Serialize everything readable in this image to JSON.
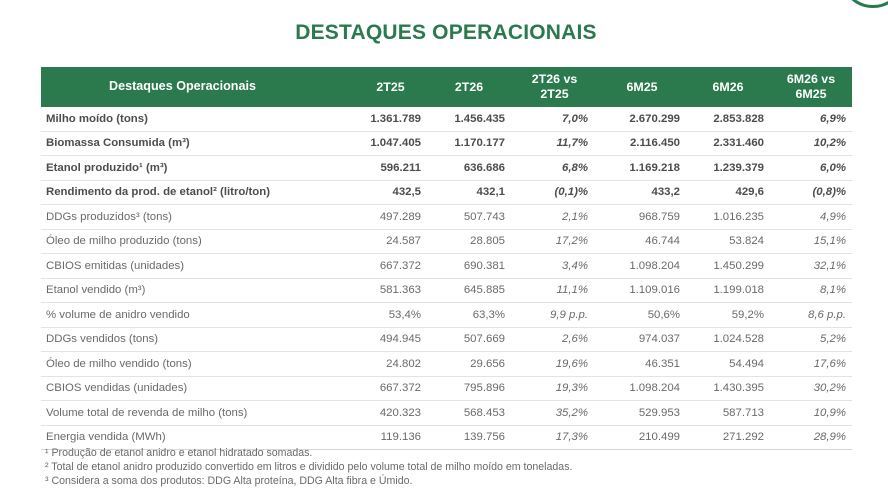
{
  "title": "DESTAQUES OPERACIONAIS",
  "colors": {
    "accent": "#2a7a4e",
    "text": "#6a6a6a",
    "header_text": "#ffffff"
  },
  "table": {
    "headers": [
      "Destaques Operacionais",
      "2T25",
      "2T26",
      "2T26 vs 2T25",
      "6M25",
      "6M26",
      "6M26 vs 6M25"
    ],
    "rows": [
      {
        "bold": true,
        "cells": [
          "Milho moído (tons)",
          "1.361.789",
          "1.456.435",
          "7,0%",
          "2.670.299",
          "2.853.828",
          "6,9%"
        ]
      },
      {
        "bold": true,
        "cells": [
          "Biomassa Consumida (m³)",
          "1.047.405",
          "1.170.177",
          "11,7%",
          "2.116.450",
          "2.331.460",
          "10,2%"
        ]
      },
      {
        "bold": true,
        "cells": [
          "Etanol produzido¹ (m³)",
          "596.211",
          "636.686",
          "6,8%",
          "1.169.218",
          "1.239.379",
          "6,0%"
        ]
      },
      {
        "bold": true,
        "cells": [
          "Rendimento da prod. de etanol² (litro/ton)",
          "432,5",
          "432,1",
          "(0,1)%",
          "433,2",
          "429,6",
          "(0,8)%"
        ]
      },
      {
        "bold": false,
        "cells": [
          "DDGs produzidos³ (tons)",
          "497.289",
          "507.743",
          "2,1%",
          "968.759",
          "1.016.235",
          "4,9%"
        ]
      },
      {
        "bold": false,
        "cells": [
          "Óleo de milho produzido (tons)",
          "24.587",
          "28.805",
          "17,2%",
          "46.744",
          "53.824",
          "15,1%"
        ]
      },
      {
        "bold": false,
        "cells": [
          "CBIOS emitidas (unidades)",
          "667.372",
          "690.381",
          "3,4%",
          "1.098.204",
          "1.450.299",
          "32,1%"
        ]
      },
      {
        "bold": false,
        "cells": [
          "Etanol vendido (m³)",
          "581.363",
          "645.885",
          "11,1%",
          "1.109.016",
          "1.199.018",
          "8,1%"
        ]
      },
      {
        "bold": false,
        "cells": [
          "% volume de anidro vendido",
          "53,4%",
          "63,3%",
          "9,9 p.p.",
          "50,6%",
          "59,2%",
          "8,6 p.p."
        ]
      },
      {
        "bold": false,
        "cells": [
          "DDGs vendidos (tons)",
          "494.945",
          "507.669",
          "2,6%",
          "974.037",
          "1.024.528",
          "5,2%"
        ]
      },
      {
        "bold": false,
        "cells": [
          "Óleo de milho vendido (tons)",
          "24.802",
          "29.656",
          "19,6%",
          "46.351",
          "54.494",
          "17,6%"
        ]
      },
      {
        "bold": false,
        "cells": [
          "CBIOS vendidas (unidades)",
          "667.372",
          "795.896",
          "19,3%",
          "1.098.204",
          "1.430.395",
          "30,2%"
        ]
      },
      {
        "bold": false,
        "cells": [
          "Volume total de revenda de milho (tons)",
          "420.323",
          "568.453",
          "35,2%",
          "529.953",
          "587.713",
          "10,9%"
        ]
      },
      {
        "bold": false,
        "cells": [
          "Energia vendida (MWh)",
          "119.136",
          "139.756",
          "17,3%",
          "210.499",
          "271.292",
          "28,9%"
        ]
      }
    ]
  },
  "footnotes": [
    "¹ Produção de etanol anidro e etanol hidratado somadas.",
    "² Total de etanol anidro produzido convertido em litros e dividido pelo volume total de milho moído em toneladas.",
    "³ Considera a soma dos produtos: DDG Alta proteína, DDG Alta fibra e Úmido."
  ]
}
